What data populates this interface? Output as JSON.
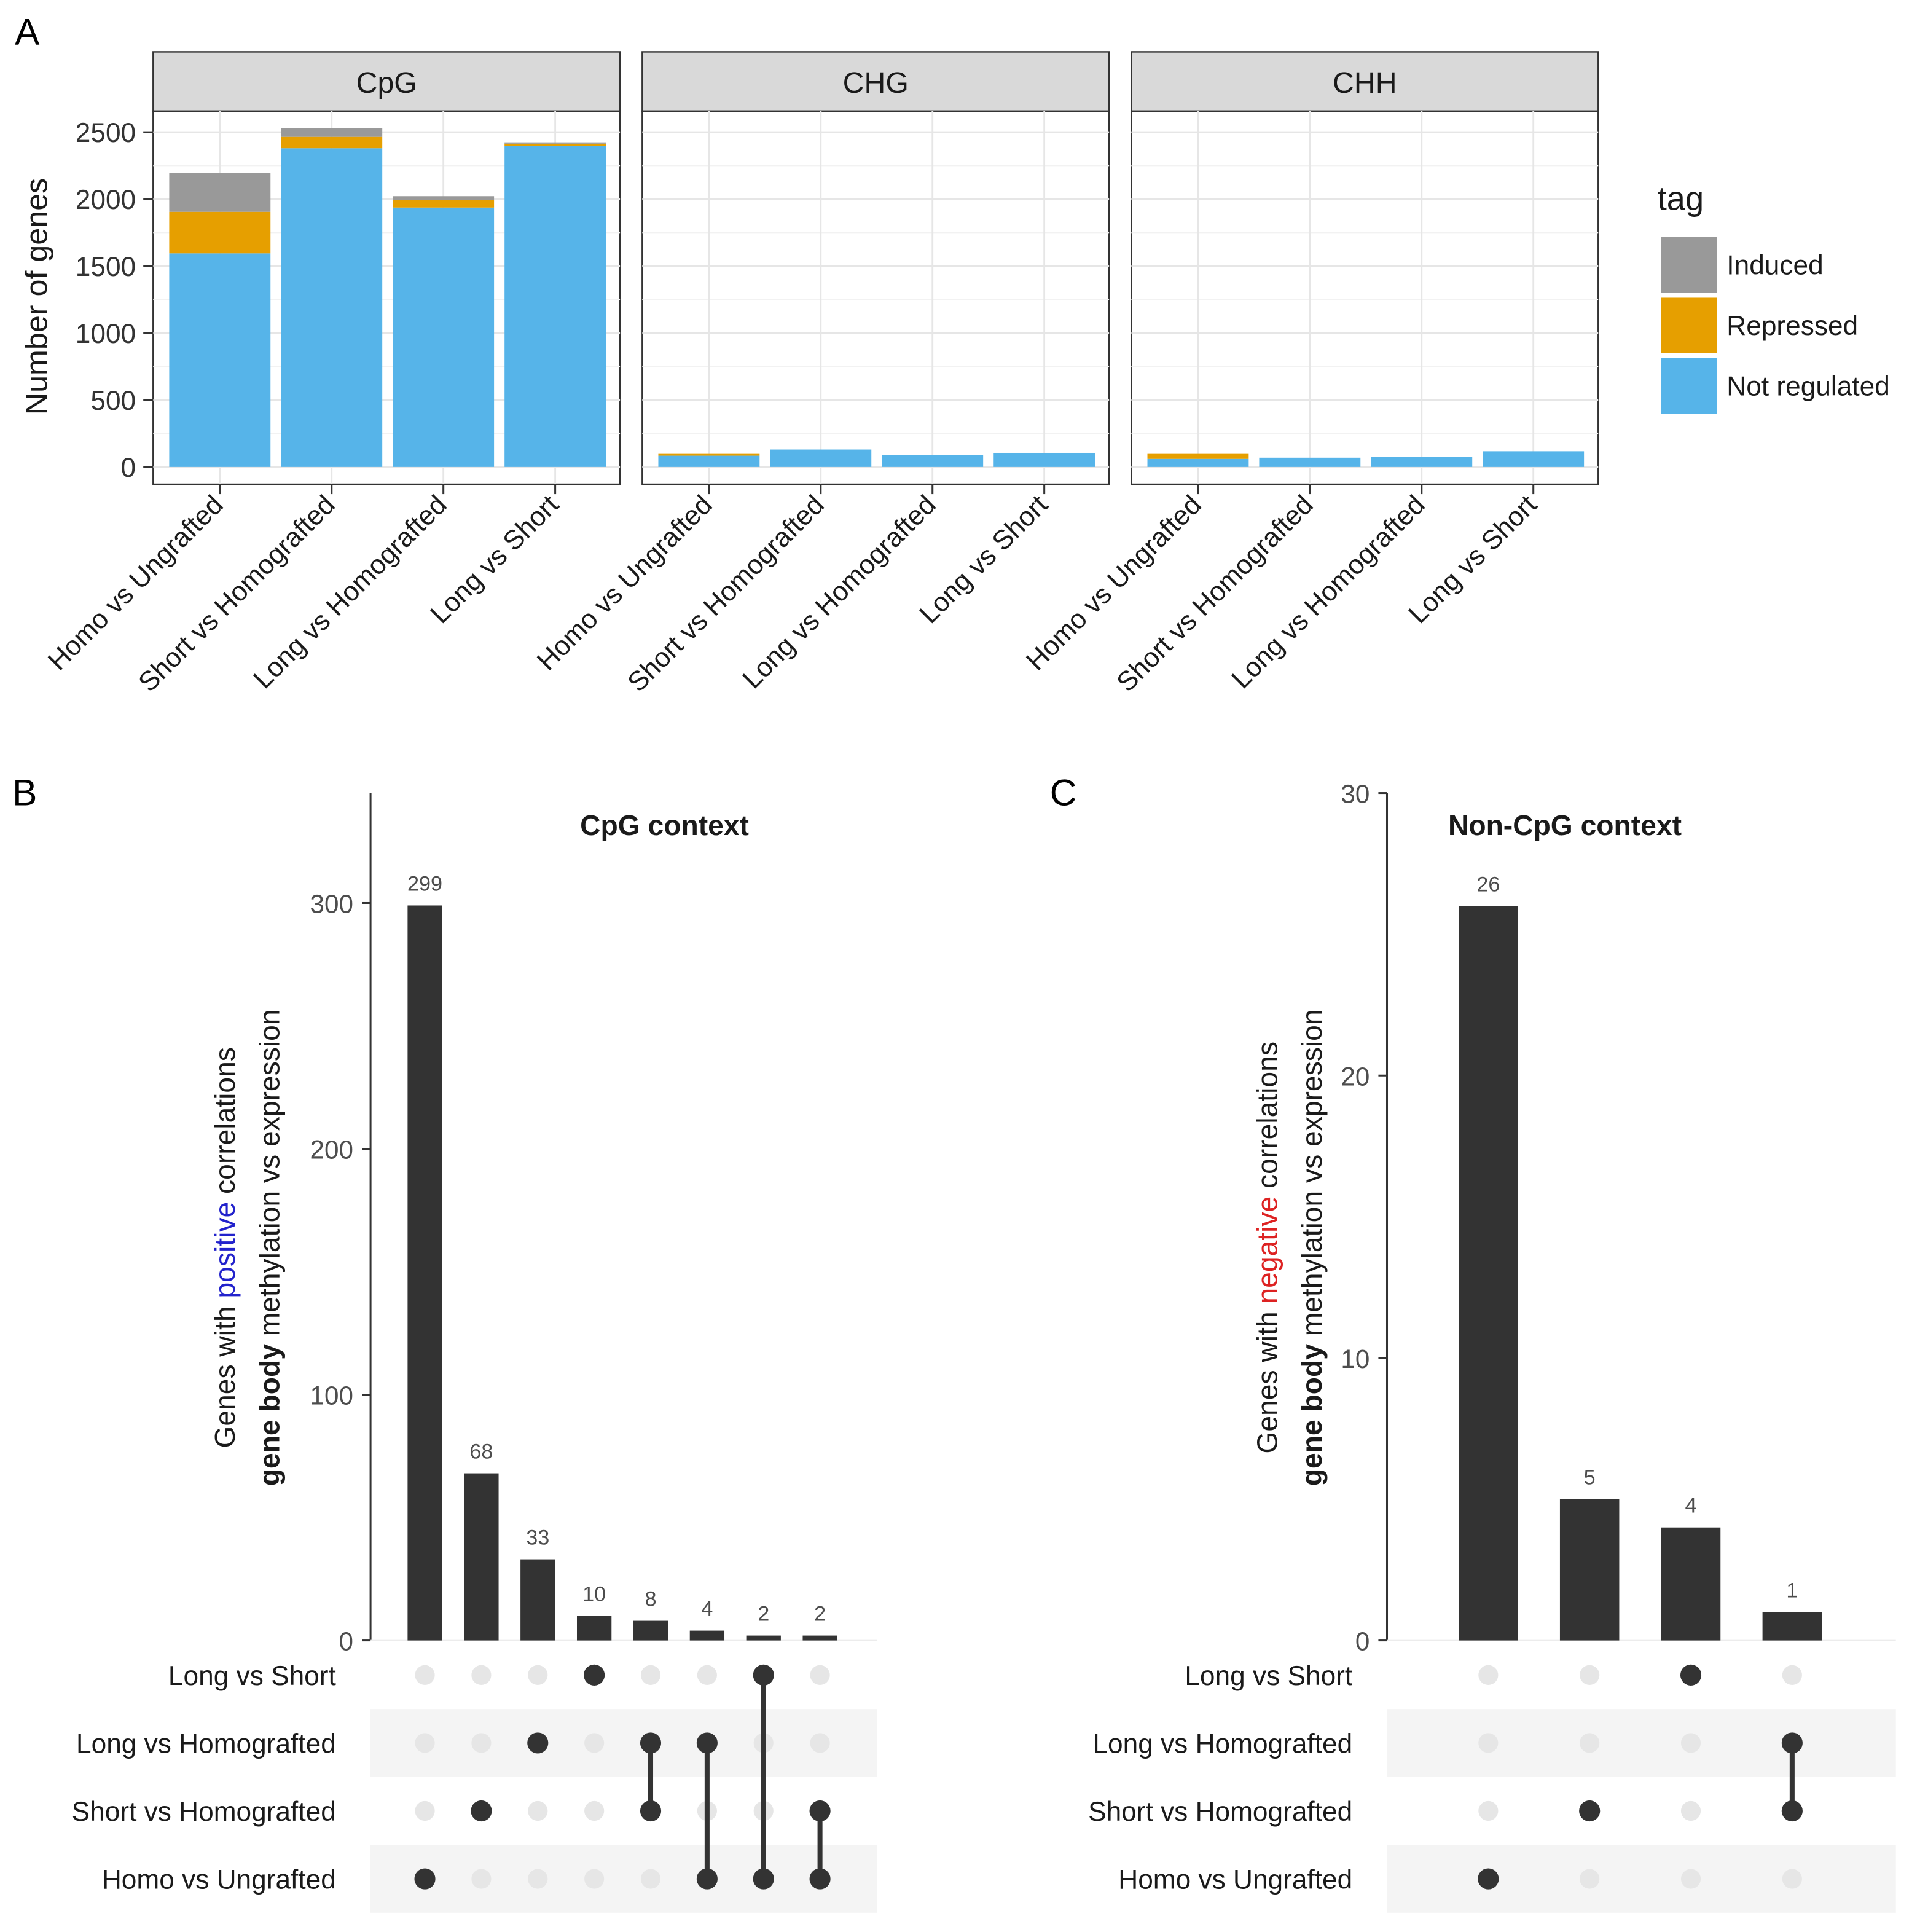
{
  "panel_labels": {
    "a": "A",
    "b": "B",
    "c": "C"
  },
  "colors": {
    "induced": "#999999",
    "repressed": "#E69F00",
    "not_regulated": "#56B4E9",
    "bar": "#333333",
    "dot_off": "#e6e6e6",
    "stripe": "#f4f4f4",
    "positive": "#2222cc",
    "negative": "#dd2222"
  },
  "chart_data": [
    {
      "type": "bar",
      "stacked": true,
      "ylabel": "Number of genes",
      "ylim": [
        0,
        2600
      ],
      "yticks": [
        "0",
        "500",
        "1000",
        "1500",
        "2000",
        "2500"
      ],
      "ytick_values": [
        0,
        500,
        1000,
        1500,
        2000,
        2500
      ],
      "grid": true,
      "legend": {
        "title": "tag",
        "placement": "right",
        "entries": [
          "Induced",
          "Repressed",
          "Not regulated"
        ]
      },
      "categories": [
        "Homo vs Ungrafted",
        "Short vs Homografted",
        "Long vs Homografted",
        "Long vs Short"
      ],
      "facets": [
        {
          "name": "CpG",
          "series": [
            {
              "name": "Not regulated",
              "values": [
                1595,
                2380,
                1937,
                2397
              ]
            },
            {
              "name": "Repressed",
              "values": [
                310,
                85,
                55,
                17
              ]
            },
            {
              "name": "Induced",
              "values": [
                292,
                65,
                30,
                10
              ]
            }
          ]
        },
        {
          "name": "CHG",
          "series": [
            {
              "name": "Not regulated",
              "values": [
                84,
                130,
                87,
                105
              ]
            },
            {
              "name": "Repressed",
              "values": [
                18,
                0,
                0,
                0
              ]
            },
            {
              "name": "Induced",
              "values": [
                0,
                0,
                0,
                0
              ]
            }
          ]
        },
        {
          "name": "CHH",
          "series": [
            {
              "name": "Not regulated",
              "values": [
                60,
                69,
                75,
                117
              ]
            },
            {
              "name": "Repressed",
              "values": [
                42,
                0,
                0,
                0
              ]
            },
            {
              "name": "Induced",
              "values": [
                0,
                0,
                0,
                0
              ]
            }
          ]
        }
      ]
    },
    {
      "type": "bar",
      "subtype": "upset",
      "title": "CpG context",
      "ylabel_line1": [
        "Genes with ",
        "positive",
        " correlations"
      ],
      "ylabel_line2": [
        "gene body",
        " methylation vs expression"
      ],
      "ylim": [
        0,
        345
      ],
      "yticks": [
        "0",
        "100",
        "200",
        "300"
      ],
      "ytick_values": [
        0,
        100,
        200,
        300
      ],
      "sets": [
        "Long vs Short",
        "Long vs Homografted",
        "Short vs Homografted",
        "Homo vs Ungrafted"
      ],
      "values": [
        299,
        68,
        33,
        10,
        8,
        4,
        2,
        2
      ],
      "labels": [
        "299",
        "68",
        "33",
        "10",
        "8",
        "4",
        "2",
        "2"
      ],
      "memberships": [
        [
          3
        ],
        [
          2
        ],
        [
          1
        ],
        [
          0
        ],
        [
          1,
          2
        ],
        [
          1,
          3
        ],
        [
          0,
          3
        ],
        [
          2,
          3
        ]
      ]
    },
    {
      "type": "bar",
      "subtype": "upset",
      "title": "Non-CpG context",
      "ylabel_line1": [
        "Genes with ",
        "negative",
        " correlations"
      ],
      "ylabel_line2": [
        "gene body",
        " methylation vs expression"
      ],
      "ylim": [
        0,
        30
      ],
      "yticks": [
        "0",
        "10",
        "20",
        "30"
      ],
      "ytick_values": [
        0,
        10,
        20,
        30
      ],
      "sets": [
        "Long vs Short",
        "Long vs Homografted",
        "Short vs Homografted",
        "Homo vs Ungrafted"
      ],
      "values": [
        26,
        5,
        4,
        1
      ],
      "labels": [
        "26",
        "5",
        "4",
        "1"
      ],
      "memberships": [
        [
          3
        ],
        [
          2
        ],
        [
          0
        ],
        [
          1,
          2
        ]
      ]
    }
  ]
}
